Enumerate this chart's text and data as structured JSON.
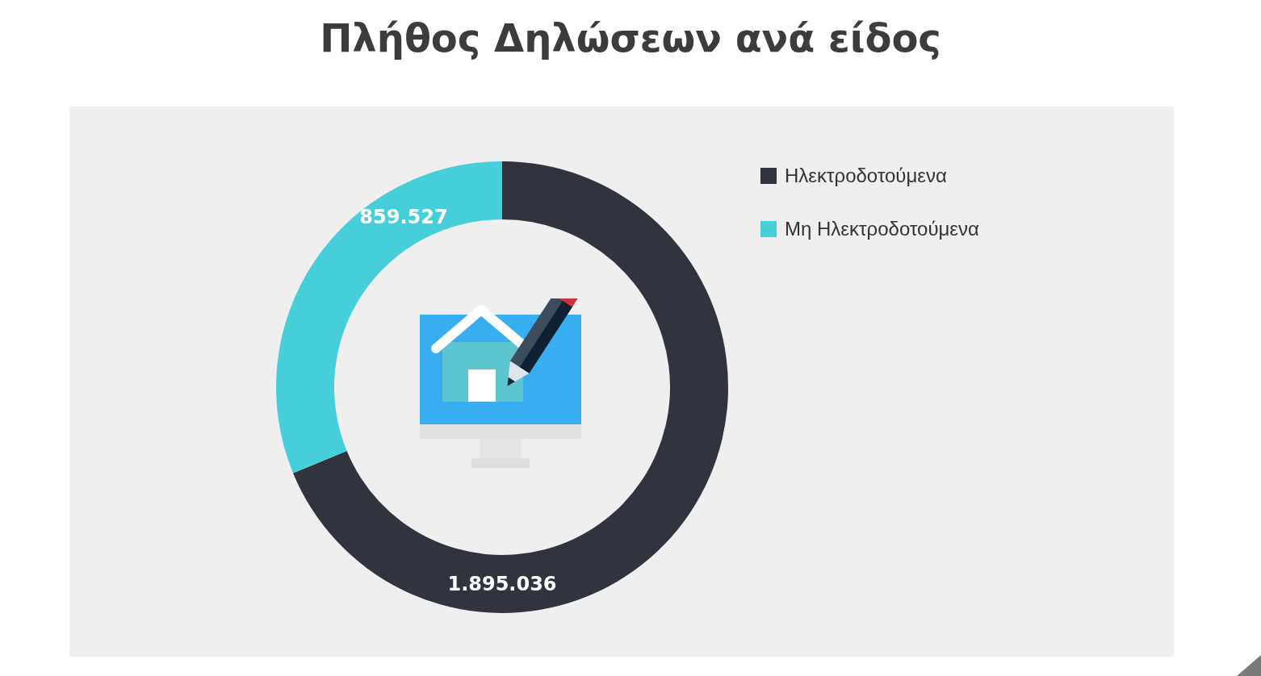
{
  "chart_data": {
    "type": "donut",
    "title": "Πλήθος Δηλώσεων ανά είδος",
    "categories": [
      "Ηλεκτροδοτούμενα",
      "Μη Ηλεκτροδοτούμενα"
    ],
    "values": [
      1895036,
      859527
    ],
    "colors": [
      "#31343f",
      "#46cfda"
    ],
    "value_labels": [
      "1.895.036",
      "859.527"
    ],
    "legend": "top right"
  }
}
